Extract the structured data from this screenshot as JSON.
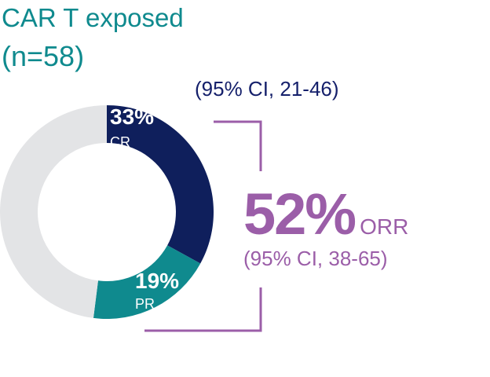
{
  "title": {
    "line1": "CAR T exposed",
    "line2": "(n=58)"
  },
  "colors": {
    "cr": "#0f1f5c",
    "pr": "#0f8a8e",
    "remainder": "#e3e4e6",
    "orr": "#9b5ea8",
    "ci_cr": "#15206b",
    "title": "#0f8a8e"
  },
  "chart_data": {
    "type": "pie",
    "style": "donut",
    "slices": [
      {
        "name": "CR",
        "value": 33,
        "label": "33%",
        "color": "#0f1f5c"
      },
      {
        "name": "PR",
        "value": 19,
        "label": "19%",
        "color": "#0f8a8e"
      },
      {
        "name": "",
        "value": 48,
        "label": "",
        "color": "#e3e4e6"
      }
    ],
    "start_angle_deg": 0,
    "annotations": {
      "cr_ci": "(95% CI, 21-46)",
      "orr_value": "52%",
      "orr_label": "ORR",
      "orr_ci": "(95% CI, 38-65)"
    }
  }
}
